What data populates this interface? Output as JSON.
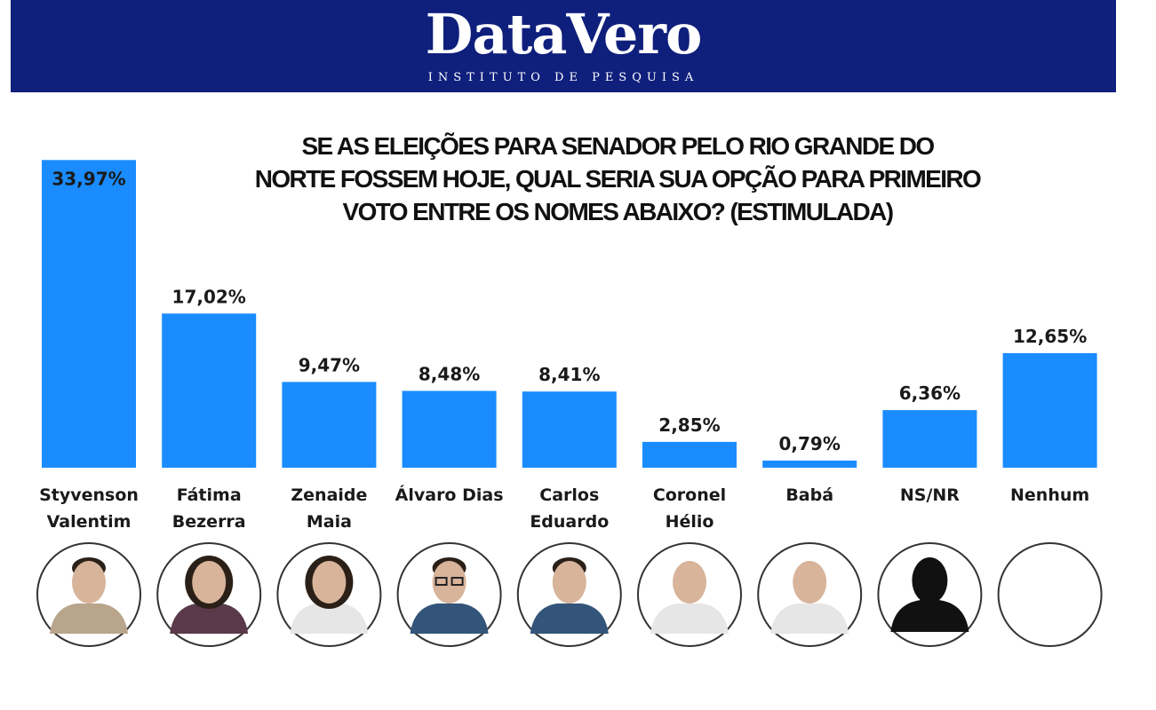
{
  "header": {
    "logo": "DataVero",
    "subtitle": "INSTITUTO DE PESQUISA",
    "background_color": "#0f1f7c"
  },
  "chart_data": {
    "type": "bar",
    "title_lines": [
      "SE AS ELEIÇÕES PARA SENADOR PELO RIO GRANDE DO",
      "NORTE FOSSEM HOJE, QUAL SERIA SUA OPÇÃO PARA PRIMEIRO",
      "VOTO ENTRE OS NOMES ABAIXO? (ESTIMULADA)"
    ],
    "categories": [
      [
        "Styvenson",
        "Valentim"
      ],
      [
        "Fátima",
        "Bezerra"
      ],
      [
        "Zenaide",
        "Maia"
      ],
      [
        "Álvaro Dias"
      ],
      [
        "Carlos",
        "Eduardo"
      ],
      [
        "Coronel",
        "Hélio"
      ],
      [
        "Babá"
      ],
      [
        "NS/NR"
      ],
      [
        "Nenhum"
      ]
    ],
    "values": [
      33.97,
      17.02,
      9.47,
      8.48,
      8.41,
      2.85,
      0.79,
      6.36,
      12.65
    ],
    "value_labels": [
      "33,97%",
      "17,02%",
      "9,47%",
      "8,48%",
      "8,41%",
      "2,85%",
      "0,79%",
      "6,36%",
      "12,65%"
    ],
    "bar_color": "#1a8cff",
    "ylim": [
      0,
      34
    ],
    "grid": false,
    "legend": "none"
  },
  "avatars": [
    {
      "icon": "person-photo-icon",
      "style": "suit"
    },
    {
      "icon": "person-photo-icon",
      "style": "woman-dark"
    },
    {
      "icon": "person-photo-icon",
      "style": "woman-light"
    },
    {
      "icon": "person-photo-icon",
      "style": "glasses"
    },
    {
      "icon": "person-photo-icon",
      "style": "blue-shirt"
    },
    {
      "icon": "person-photo-icon",
      "style": "white-shirt"
    },
    {
      "icon": "person-photo-icon",
      "style": "white-shirt"
    },
    {
      "icon": "silhouette-icon",
      "style": "silhouette"
    },
    {
      "icon": "empty-circle-icon",
      "style": "empty"
    }
  ]
}
